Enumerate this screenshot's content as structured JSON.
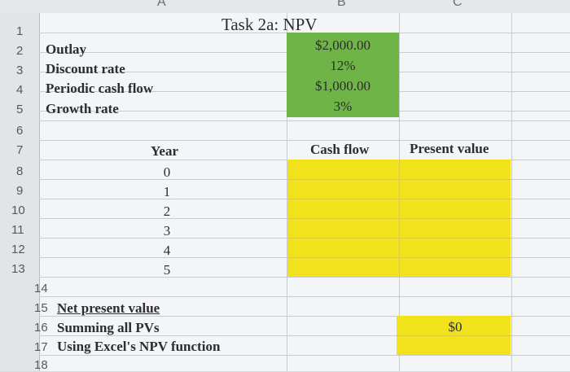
{
  "columns": {
    "a": "A",
    "b": "B",
    "c": "C"
  },
  "rows": [
    "1",
    "2",
    "3",
    "4",
    "5",
    "6",
    "7",
    "8",
    "9",
    "10",
    "11",
    "12",
    "13",
    "14",
    "15",
    "16",
    "17",
    "18"
  ],
  "title": "Task 2a: NPV",
  "inputs": [
    {
      "label": "Outlay",
      "value": "$2,000.00"
    },
    {
      "label": "Discount rate",
      "value": "12%"
    },
    {
      "label": "Periodic cash flow",
      "value": "$1,000.00"
    },
    {
      "label": "Growth rate",
      "value": "3%"
    }
  ],
  "table": {
    "year_header": "Year",
    "cash_flow_header": "Cash flow",
    "pv_header": "Present value",
    "years": [
      "0",
      "1",
      "2",
      "3",
      "4",
      "5"
    ]
  },
  "npv": {
    "heading": "Net present value",
    "summing_label": "Summing all PVs",
    "summing_value": "$0",
    "excel_label": "Using Excel's NPV function"
  },
  "colors": {
    "input_fill": "#6fb446",
    "output_fill": "#f1e21b"
  }
}
